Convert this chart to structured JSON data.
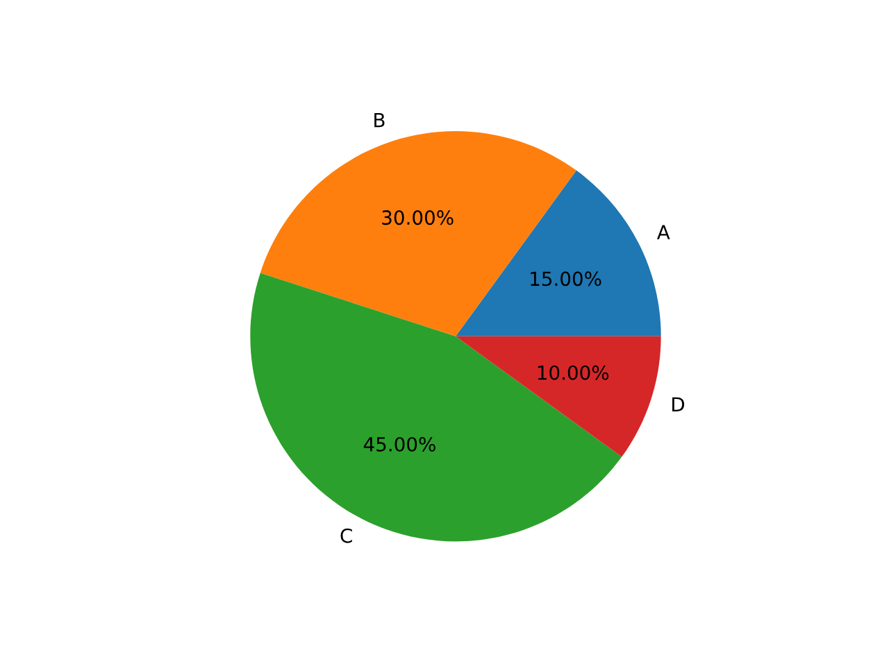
{
  "chart_data": {
    "type": "pie",
    "categories": [
      "A",
      "B",
      "C",
      "D"
    ],
    "values": [
      15,
      30,
      45,
      10
    ],
    "colors": [
      "#1f77b4",
      "#ff7f0e",
      "#2ca02c",
      "#d62728"
    ],
    "value_labels": [
      "15.00%",
      "30.00%",
      "45.00%",
      "10.00%"
    ]
  }
}
